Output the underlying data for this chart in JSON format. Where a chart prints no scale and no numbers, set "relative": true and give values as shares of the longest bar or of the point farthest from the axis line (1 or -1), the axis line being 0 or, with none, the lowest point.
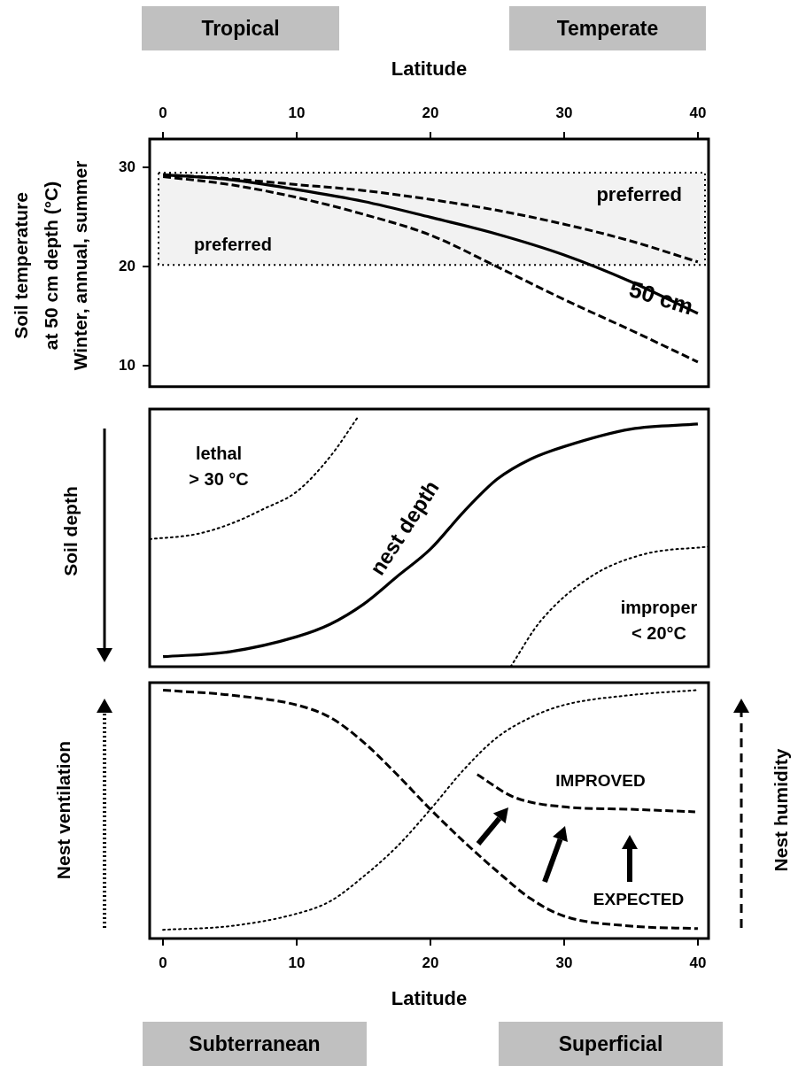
{
  "chart_data": [
    {
      "type": "line",
      "xlabel": "Latitude",
      "ylabel": "Soil temperature\nat 50 cm depth (°C)\nWinter, annual, summer",
      "x": [
        0,
        5,
        10,
        15,
        20,
        25,
        30,
        35,
        40
      ],
      "xlim": [
        -1,
        40.8
      ],
      "xticks": [
        0,
        10,
        20,
        30,
        40
      ],
      "ylim": [
        7.9,
        32.9
      ],
      "yticks": [
        10,
        20,
        30
      ],
      "marker": "none",
      "series": [
        {
          "color": "#000000",
          "line_style": "dashed",
          "values": [
            29.1,
            28.3,
            27.0,
            25.3,
            23.2,
            20.0,
            16.7,
            13.6,
            10.4
          ]
        },
        {
          "color": "#000000",
          "line_style": "solid",
          "values": [
            29.3,
            28.8,
            27.8,
            26.6,
            25.0,
            23.3,
            21.2,
            18.5,
            15.3
          ]
        },
        {
          "color": "#000000",
          "line_style": "dashed",
          "values": [
            29.3,
            28.9,
            28.3,
            27.7,
            26.8,
            25.7,
            24.3,
            22.6,
            20.5
          ]
        }
      ],
      "bands": [
        {
          "axis": "y",
          "from": 20.2,
          "to": 29.5,
          "label": "preferred"
        }
      ],
      "annotations": [
        "Tropical",
        "Temperate",
        "preferred",
        "50 cm"
      ]
    },
    {
      "type": "line",
      "ylabel": "Soil depth",
      "relative": true,
      "xlim": [
        -1,
        40.8
      ],
      "marker": "none",
      "series": [
        {
          "color": "#000000",
          "line_style": "dotted",
          "x": [
            -1,
            2.5,
            5,
            7.5,
            10,
            12.5,
            14.6
          ],
          "values": [
            0.51,
            0.53,
            0.57,
            0.63,
            0.7,
            0.84,
            1.0
          ]
        },
        {
          "color": "#000000",
          "line_style": "solid",
          "x": [
            0,
            5,
            10,
            12.5,
            15,
            17.5,
            20,
            22.5,
            25,
            27.5,
            30,
            35,
            40
          ],
          "values": [
            0.04,
            0.06,
            0.12,
            0.17,
            0.25,
            0.36,
            0.47,
            0.62,
            0.75,
            0.83,
            0.88,
            0.95,
            0.97
          ]
        },
        {
          "color": "#000000",
          "line_style": "dotted",
          "x": [
            26,
            28.2,
            32,
            36,
            40.8
          ],
          "values": [
            0,
            0.18,
            0.36,
            0.45,
            0.48
          ]
        }
      ],
      "annotations": [
        "lethal\n> 30 °C",
        "nest depth",
        "improper\n< 20°C"
      ]
    },
    {
      "type": "line",
      "xlabel": "Latitude",
      "ylabel": "Nest ventilation",
      "y2label": "Nest humidity",
      "relative": true,
      "xlim": [
        -1,
        40.8
      ],
      "xticks": [
        0,
        10,
        20,
        30,
        40
      ],
      "marker": "none",
      "series": [
        {
          "color": "#000000",
          "line_style": "dashed",
          "x": [
            0,
            5,
            10,
            12.5,
            15,
            17.5,
            20,
            22.5,
            25,
            27.5,
            30,
            35,
            40
          ],
          "values": [
            1.0,
            0.98,
            0.94,
            0.89,
            0.79,
            0.66,
            0.52,
            0.39,
            0.27,
            0.16,
            0.09,
            0.05,
            0.04
          ]
        },
        {
          "color": "#000000",
          "line_style": "dotted",
          "x": [
            0,
            5,
            10,
            12.5,
            15,
            17.5,
            20,
            22.5,
            25,
            27.5,
            30,
            35,
            40
          ],
          "values": [
            0.035,
            0.05,
            0.1,
            0.15,
            0.25,
            0.37,
            0.52,
            0.68,
            0.81,
            0.89,
            0.94,
            0.98,
            1.0
          ]
        },
        {
          "color": "#000000",
          "line_style": "dashed",
          "x": [
            23.5,
            26.2,
            30,
            35,
            39.8
          ],
          "values": [
            0.66,
            0.57,
            0.53,
            0.52,
            0.51
          ]
        }
      ],
      "annotations": [
        "Subterranean",
        "Superficial",
        "IMPROVED",
        "EXPECTED"
      ]
    }
  ]
}
